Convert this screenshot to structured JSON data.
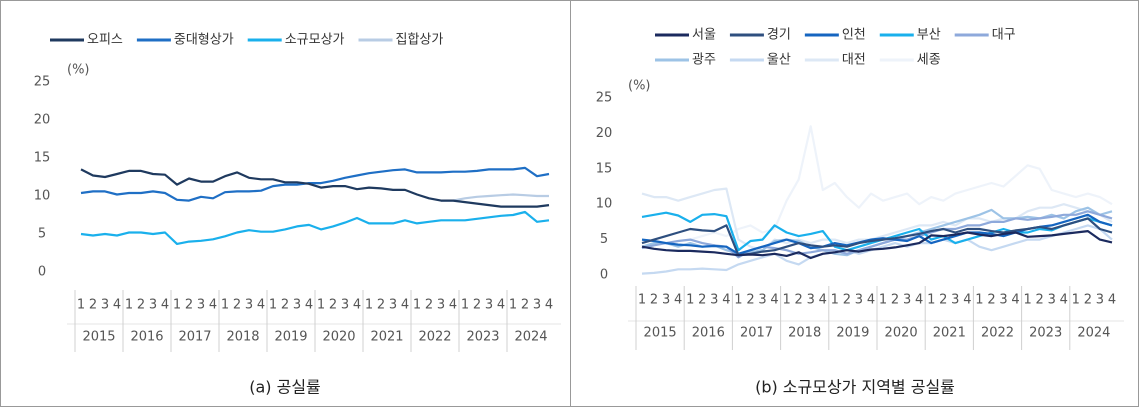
{
  "chart_data": [
    {
      "type": "line",
      "caption": "(a) 공실률",
      "ylabel": "(%)",
      "categories": [
        "1",
        "2",
        "3",
        "4",
        "1",
        "2",
        "3",
        "4",
        "1",
        "2",
        "3",
        "4",
        "1",
        "2",
        "3",
        "4",
        "1",
        "2",
        "3",
        "4",
        "1",
        "2",
        "3",
        "4",
        "1",
        "2",
        "3",
        "4",
        "1",
        "2",
        "3",
        "4",
        "1",
        "2",
        "3",
        "4",
        "1",
        "2",
        "3",
        "4"
      ],
      "year_groups": [
        "2015",
        "2016",
        "2017",
        "2018",
        "2019",
        "2020",
        "2021",
        "2022",
        "2023",
        "2024"
      ],
      "ylim": [
        0,
        25
      ],
      "yticks": [
        0,
        5,
        10,
        15,
        20,
        25
      ],
      "grid": false,
      "series": [
        {
          "name": "오피스",
          "color": "#1f3a5f",
          "values": [
            13.5,
            12.7,
            12.5,
            12.9,
            13.3,
            13.3,
            12.9,
            12.8,
            11.5,
            12.3,
            11.9,
            11.9,
            12.6,
            13.1,
            12.4,
            12.2,
            12.2,
            11.8,
            11.8,
            11.6,
            11.1,
            11.3,
            11.3,
            10.9,
            11.1,
            11.0,
            10.8,
            10.8,
            10.2,
            9.7,
            9.4,
            9.4,
            9.2,
            9.0,
            8.8,
            8.6,
            8.6,
            8.6,
            8.6,
            8.8
          ]
        },
        {
          "name": "중대형상가",
          "color": "#1f6fc5",
          "values": [
            10.4,
            10.6,
            10.6,
            10.2,
            10.4,
            10.4,
            10.6,
            10.4,
            9.5,
            9.4,
            9.9,
            9.7,
            10.5,
            10.6,
            10.6,
            10.7,
            11.3,
            11.5,
            11.5,
            11.7,
            11.7,
            12.0,
            12.4,
            12.7,
            13.0,
            13.2,
            13.4,
            13.5,
            13.1,
            13.1,
            13.1,
            13.2,
            13.2,
            13.3,
            13.5,
            13.5,
            13.5,
            13.7,
            12.6,
            12.9
          ]
        },
        {
          "name": "소규모상가",
          "color": "#1ab0ec",
          "values": [
            5.0,
            4.8,
            5.0,
            4.8,
            5.2,
            5.2,
            5.0,
            5.2,
            3.7,
            4.0,
            4.1,
            4.3,
            4.7,
            5.2,
            5.5,
            5.3,
            5.3,
            5.6,
            6.0,
            6.2,
            5.6,
            6.0,
            6.5,
            7.1,
            6.4,
            6.4,
            6.4,
            6.8,
            6.4,
            6.6,
            6.8,
            6.8,
            6.8,
            7.0,
            7.2,
            7.4,
            7.5,
            7.9,
            6.6,
            6.8
          ]
        },
        {
          "name": "집합상가",
          "color": "#b8cce4",
          "values": [
            null,
            null,
            null,
            null,
            null,
            null,
            null,
            null,
            null,
            null,
            null,
            null,
            null,
            null,
            null,
            null,
            null,
            null,
            null,
            null,
            null,
            null,
            null,
            null,
            null,
            null,
            null,
            null,
            null,
            null,
            9.4,
            9.4,
            9.7,
            9.9,
            10.0,
            10.1,
            10.2,
            10.1,
            10.0,
            10.0
          ]
        }
      ]
    },
    {
      "type": "line",
      "caption": "(b) 소규모상가 지역별 공실률",
      "ylabel": "(%)",
      "categories": [
        "1",
        "2",
        "3",
        "4",
        "1",
        "2",
        "3",
        "4",
        "1",
        "2",
        "3",
        "4",
        "1",
        "2",
        "3",
        "4",
        "1",
        "2",
        "3",
        "4",
        "1",
        "2",
        "3",
        "4",
        "1",
        "2",
        "3",
        "4",
        "1",
        "2",
        "3",
        "4",
        "1",
        "2",
        "3",
        "4",
        "1",
        "2",
        "3",
        "4"
      ],
      "year_groups": [
        "2015",
        "2016",
        "2017",
        "2018",
        "2019",
        "2020",
        "2021",
        "2022",
        "2023",
        "2024"
      ],
      "ylim": [
        0,
        25
      ],
      "yticks": [
        0,
        5,
        10,
        15,
        20,
        25
      ],
      "grid": false,
      "series": [
        {
          "name": "서울",
          "color": "#1b2a5e",
          "values": [
            4.0,
            3.7,
            3.5,
            3.4,
            3.4,
            3.3,
            3.2,
            3.0,
            2.8,
            2.9,
            2.8,
            3.0,
            2.7,
            3.2,
            2.4,
            3.0,
            3.2,
            3.5,
            3.3,
            3.6,
            3.7,
            3.9,
            4.2,
            4.5,
            5.6,
            5.5,
            5.7,
            6.0,
            5.7,
            5.5,
            5.8,
            6.0,
            5.4,
            5.5,
            5.6,
            5.8,
            6.0,
            6.2,
            5.0,
            4.6
          ]
        },
        {
          "name": "경기",
          "color": "#2e4f7f",
          "values": [
            4.5,
            5.0,
            5.5,
            6.0,
            6.5,
            6.3,
            6.2,
            7.0,
            2.8,
            3.0,
            3.3,
            3.5,
            4.0,
            4.5,
            4.2,
            4.0,
            4.2,
            4.0,
            4.5,
            4.8,
            5.0,
            5.2,
            5.5,
            5.8,
            6.2,
            6.5,
            6.0,
            6.5,
            6.5,
            6.2,
            6.0,
            6.3,
            6.5,
            6.8,
            6.5,
            7.0,
            7.5,
            8.0,
            6.5,
            6.0
          ]
        },
        {
          "name": "인천",
          "color": "#1565c0",
          "values": [
            5.0,
            4.8,
            4.5,
            4.3,
            4.2,
            4.0,
            4.1,
            4.0,
            3.0,
            3.5,
            4.0,
            4.5,
            5.0,
            4.5,
            3.8,
            4.0,
            4.5,
            4.2,
            4.6,
            5.0,
            5.2,
            5.0,
            4.8,
            5.5,
            4.5,
            5.0,
            5.5,
            6.0,
            6.0,
            5.8,
            5.5,
            6.0,
            6.5,
            6.8,
            7.0,
            7.5,
            8.0,
            8.5,
            7.5,
            7.0
          ]
        },
        {
          "name": "부산",
          "color": "#1ab0ec",
          "values": [
            8.2,
            8.5,
            8.8,
            8.4,
            7.5,
            8.5,
            8.6,
            8.3,
            3.5,
            4.8,
            5.0,
            7.0,
            6.0,
            5.5,
            5.8,
            6.2,
            4.0,
            3.5,
            4.0,
            4.5,
            5.0,
            5.5,
            6.0,
            6.5,
            5.0,
            5.5,
            4.5,
            5.0,
            5.5,
            6.0,
            6.5,
            6.0,
            6.0,
            6.5,
            6.3,
            7.0,
            7.5,
            8.0,
            7.5,
            7.0
          ]
        },
        {
          "name": "대구",
          "color": "#8ea9db",
          "values": [
            3.8,
            4.2,
            4.5,
            4.8,
            5.0,
            4.5,
            4.2,
            4.0,
            2.5,
            3.5,
            4.0,
            3.8,
            3.5,
            3.0,
            3.2,
            3.5,
            3.5,
            3.0,
            3.5,
            4.0,
            4.5,
            5.0,
            5.0,
            5.5,
            6.0,
            6.5,
            6.5,
            7.0,
            7.0,
            7.5,
            7.5,
            8.0,
            7.8,
            8.0,
            8.2,
            8.5,
            8.5,
            9.0,
            8.5,
            8.0
          ]
        },
        {
          "name": "광주",
          "color": "#9dc3e6",
          "values": [
            4.0,
            4.5,
            4.5,
            4.0,
            4.5,
            4.0,
            4.2,
            3.5,
            3.0,
            3.2,
            3.5,
            4.8,
            5.0,
            4.8,
            4.0,
            3.5,
            3.0,
            2.8,
            3.5,
            4.0,
            4.5,
            5.0,
            5.5,
            6.0,
            6.5,
            7.0,
            7.5,
            8.0,
            8.5,
            9.2,
            8.0,
            8.0,
            8.2,
            8.0,
            8.5,
            8.0,
            9.0,
            9.5,
            8.5,
            9.0
          ]
        },
        {
          "name": "울산",
          "color": "#c5d9f1",
          "values": [
            0.2,
            0.3,
            0.5,
            0.8,
            0.8,
            0.9,
            0.8,
            0.7,
            1.5,
            2.0,
            2.5,
            3.0,
            2.0,
            1.5,
            2.5,
            3.0,
            3.2,
            3.5,
            3.0,
            3.5,
            4.0,
            4.5,
            4.0,
            4.5,
            4.5,
            5.0,
            4.5,
            5.0,
            4.0,
            3.5,
            4.0,
            4.5,
            5.0,
            5.0,
            5.5,
            6.0,
            6.5,
            7.0,
            6.5,
            5.0
          ]
        },
        {
          "name": "대전",
          "color": "#dde8f5",
          "values": [
            11.5,
            11.0,
            11.0,
            10.5,
            11.0,
            11.5,
            12.0,
            12.2,
            5.0,
            4.0,
            3.5,
            5.0,
            4.5,
            5.0,
            4.5,
            5.0,
            5.0,
            4.5,
            5.0,
            5.0,
            5.5,
            6.0,
            6.5,
            7.0,
            7.0,
            7.5,
            7.0,
            8.0,
            8.0,
            7.5,
            8.0,
            8.0,
            9.0,
            9.5,
            9.5,
            10.0,
            9.5,
            9.0,
            8.5,
            7.5
          ]
        },
        {
          "name": "세종",
          "color": "#eef3fa",
          "values": [
            null,
            null,
            null,
            null,
            5.0,
            5.5,
            6.0,
            5.5,
            6.5,
            7.0,
            6.0,
            6.5,
            10.5,
            13.5,
            21.0,
            12.0,
            13.0,
            11.0,
            9.5,
            11.5,
            10.5,
            11.0,
            11.5,
            10.0,
            11.0,
            10.5,
            11.5,
            12.0,
            12.5,
            13.0,
            12.5,
            14.0,
            15.5,
            15.0,
            12.0,
            11.5,
            11.0,
            11.5,
            11.0,
            10.0
          ]
        }
      ]
    }
  ]
}
